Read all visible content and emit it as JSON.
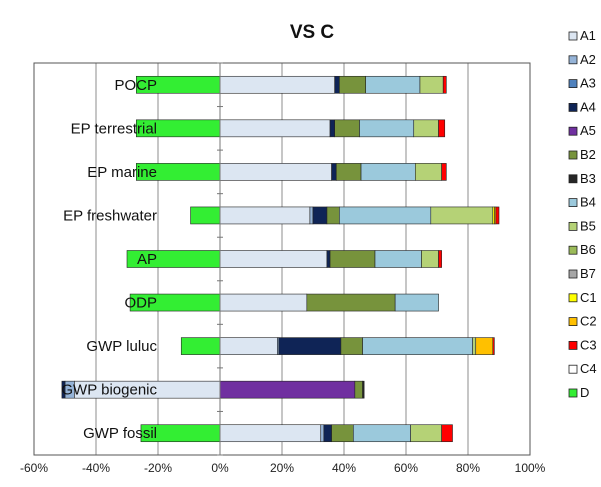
{
  "chart_data": {
    "type": "bar",
    "orientation": "horizontal",
    "stacked": true,
    "title": "VS C",
    "xlabel": "",
    "ylabel": "",
    "xlim": [
      -0.6,
      1.0
    ],
    "x_ticks": [
      "-60%",
      "-40%",
      "-20%",
      "0%",
      "20%",
      "40%",
      "60%",
      "80%",
      "100%"
    ],
    "grid": "vertical",
    "legend_position": "right",
    "categories": [
      "POCP",
      "EP terrestrial",
      "EP marine",
      "EP freshwater",
      "AP",
      "ODP",
      "GWP luluc",
      "GWP biogenic",
      "GWP fossil"
    ],
    "series": [
      {
        "name": "A1",
        "color": "#dce6f2",
        "values": [
          0.37,
          0.355,
          0.36,
          0.29,
          0.345,
          0.28,
          0.185,
          -0.47,
          0.325
        ]
      },
      {
        "name": "A2",
        "color": "#95b3d7",
        "values": [
          0,
          0,
          0,
          0.01,
          0,
          0,
          0.005,
          -0.03,
          0.01
        ]
      },
      {
        "name": "A3",
        "color": "#4f81bd",
        "values": [
          0,
          0,
          0,
          0,
          0,
          0,
          0,
          0,
          0
        ]
      },
      {
        "name": "A4",
        "color": "#0f2456",
        "values": [
          0.015,
          0.015,
          0.015,
          0.045,
          0.01,
          0,
          0.2,
          -0.01,
          0.025
        ]
      },
      {
        "name": "A5",
        "color": "#7030a0",
        "values": [
          0,
          0,
          0,
          0,
          0,
          0,
          0,
          0.435,
          0
        ]
      },
      {
        "name": "B2",
        "color": "#77933c",
        "values": [
          0.085,
          0.08,
          0.08,
          0.04,
          0.145,
          0.285,
          0.07,
          0.025,
          0.07
        ]
      },
      {
        "name": "B3",
        "color": "#262626",
        "values": [
          0,
          0,
          0,
          0,
          0,
          0,
          0,
          0.005,
          0
        ]
      },
      {
        "name": "B4",
        "color": "#9bc9dc",
        "values": [
          0.175,
          0.175,
          0.175,
          0.295,
          0.15,
          0.14,
          0.355,
          0,
          0.185
        ]
      },
      {
        "name": "B5",
        "color": "#b5d276",
        "values": [
          0.075,
          0.08,
          0.085,
          0.2,
          0.055,
          0,
          0.01,
          0,
          0.1
        ]
      },
      {
        "name": "B6",
        "color": "#9bbb59",
        "values": [
          0,
          0,
          0,
          0,
          0,
          0,
          0,
          0,
          0
        ]
      },
      {
        "name": "B7",
        "color": "#a6a6a6",
        "values": [
          0,
          0,
          0,
          0,
          0,
          0,
          0,
          0,
          0
        ]
      },
      {
        "name": "C1",
        "color": "#ffff00",
        "values": [
          0,
          0,
          0,
          0.005,
          0,
          0,
          0,
          0,
          0
        ]
      },
      {
        "name": "C2",
        "color": "#ffc000",
        "values": [
          0,
          0,
          0,
          0.005,
          0,
          0,
          0.055,
          0,
          0
        ]
      },
      {
        "name": "C3",
        "color": "#ff0000",
        "values": [
          0.01,
          0.02,
          0.015,
          0.01,
          0.01,
          0,
          0.005,
          0,
          0.035
        ]
      },
      {
        "name": "C4",
        "color": "#ffffff",
        "values": [
          0,
          0,
          0,
          0,
          0,
          0,
          0,
          0,
          0
        ]
      },
      {
        "name": "D",
        "color": "#33ee33",
        "values": [
          -0.27,
          -0.27,
          -0.27,
          -0.095,
          -0.3,
          -0.29,
          -0.125,
          0,
          -0.255
        ]
      }
    ]
  }
}
